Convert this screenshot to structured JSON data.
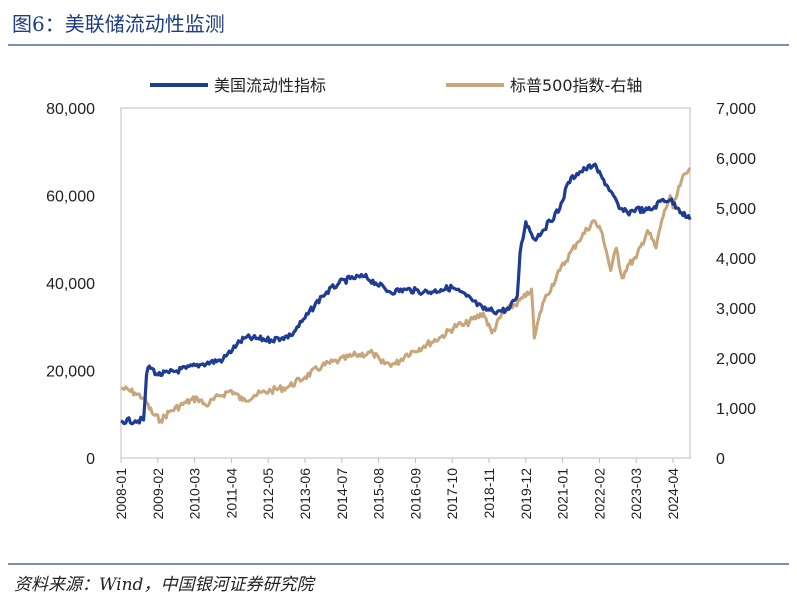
{
  "title": "图6：美联储流动性监测",
  "source": "资料来源：Wind，中国银河证券研究院",
  "colors": {
    "liquidity": "#1f3c94",
    "sp500": "#c8a57a",
    "rule": "#7f8fb4"
  },
  "chart_data": {
    "type": "line",
    "legend": [
      "美国流动性指标",
      "标普500指数-右轴"
    ],
    "legend_position": "top",
    "left_axis": {
      "ticks": [
        "0",
        "20,000",
        "40,000",
        "60,000",
        "80,000"
      ],
      "ylim": [
        0,
        80000
      ]
    },
    "right_axis": {
      "ticks": [
        "0",
        "1,000",
        "2,000",
        "3,000",
        "4,000",
        "5,000",
        "6,000",
        "7,000"
      ],
      "ylim": [
        0,
        7000
      ]
    },
    "x_ticks": [
      "2008-01",
      "2009-02",
      "2010-03",
      "2011-04",
      "2012-05",
      "2013-06",
      "2014-07",
      "2015-08",
      "2016-09",
      "2017-10",
      "2018-11",
      "2019-12",
      "2021-01",
      "2022-02",
      "2023-03",
      "2024-04"
    ],
    "x_range": [
      "2008-01",
      "2024-10"
    ],
    "series": [
      {
        "name": "美国流动性指标",
        "axis": "left",
        "points": [
          [
            "2008-01",
            8500
          ],
          [
            "2008-06",
            8500
          ],
          [
            "2008-09",
            8700
          ],
          [
            "2008-10",
            19000
          ],
          [
            "2008-11",
            21000
          ],
          [
            "2009-02",
            19000
          ],
          [
            "2009-06",
            19500
          ],
          [
            "2009-12",
            20500
          ],
          [
            "2010-06",
            21500
          ],
          [
            "2011-01",
            22500
          ],
          [
            "2011-06",
            26000
          ],
          [
            "2011-09",
            27500
          ],
          [
            "2012-06",
            27000
          ],
          [
            "2012-10",
            27500
          ],
          [
            "2013-01",
            28000
          ],
          [
            "2013-06",
            32000
          ],
          [
            "2013-12",
            37000
          ],
          [
            "2014-06",
            40000
          ],
          [
            "2014-10",
            41000
          ],
          [
            "2015-03",
            41500
          ],
          [
            "2015-07",
            40000
          ],
          [
            "2015-12",
            38000
          ],
          [
            "2016-06",
            38500
          ],
          [
            "2016-12",
            38000
          ],
          [
            "2017-03",
            38000
          ],
          [
            "2017-06",
            38500
          ],
          [
            "2017-10",
            39000
          ],
          [
            "2018-03",
            37000
          ],
          [
            "2018-09",
            34000
          ],
          [
            "2019-02",
            33500
          ],
          [
            "2019-06",
            34000
          ],
          [
            "2019-08",
            36000
          ],
          [
            "2019-09",
            37000
          ],
          [
            "2019-10",
            47000
          ],
          [
            "2019-12",
            54000
          ],
          [
            "2020-03",
            50000
          ],
          [
            "2020-06",
            52000
          ],
          [
            "2020-12",
            57000
          ],
          [
            "2021-03",
            63000
          ],
          [
            "2021-06",
            65000
          ],
          [
            "2021-09",
            66000
          ],
          [
            "2021-12",
            67000
          ],
          [
            "2022-03",
            64000
          ],
          [
            "2022-06",
            61000
          ],
          [
            "2022-09",
            57000
          ],
          [
            "2022-12",
            56000
          ],
          [
            "2023-03",
            57000
          ],
          [
            "2023-06",
            56500
          ],
          [
            "2023-09",
            57000
          ],
          [
            "2023-12",
            59000
          ],
          [
            "2024-03",
            59000
          ],
          [
            "2024-06",
            57000
          ],
          [
            "2024-09",
            55000
          ],
          [
            "2024-10",
            54500
          ]
        ]
      },
      {
        "name": "标普500指数-右轴",
        "axis": "right",
        "points": [
          [
            "2008-01",
            1400
          ],
          [
            "2008-06",
            1300
          ],
          [
            "2008-09",
            1200
          ],
          [
            "2008-12",
            900
          ],
          [
            "2009-03",
            750
          ],
          [
            "2009-06",
            920
          ],
          [
            "2009-12",
            1110
          ],
          [
            "2010-04",
            1200
          ],
          [
            "2010-07",
            1050
          ],
          [
            "2010-12",
            1250
          ],
          [
            "2011-04",
            1350
          ],
          [
            "2011-08",
            1150
          ],
          [
            "2011-12",
            1250
          ],
          [
            "2012-06",
            1350
          ],
          [
            "2012-12",
            1420
          ],
          [
            "2013-06",
            1620
          ],
          [
            "2013-12",
            1840
          ],
          [
            "2014-06",
            1950
          ],
          [
            "2014-12",
            2060
          ],
          [
            "2015-06",
            2100
          ],
          [
            "2015-09",
            1900
          ],
          [
            "2016-02",
            1880
          ],
          [
            "2016-06",
            2080
          ],
          [
            "2016-12",
            2240
          ],
          [
            "2017-06",
            2420
          ],
          [
            "2017-12",
            2670
          ],
          [
            "2018-02",
            2650
          ],
          [
            "2018-09",
            2900
          ],
          [
            "2018-12",
            2500
          ],
          [
            "2019-04",
            2900
          ],
          [
            "2019-12",
            3230
          ],
          [
            "2020-02",
            3380
          ],
          [
            "2020-03",
            2400
          ],
          [
            "2020-06",
            3100
          ],
          [
            "2020-12",
            3750
          ],
          [
            "2021-06",
            4300
          ],
          [
            "2021-12",
            4750
          ],
          [
            "2022-03",
            4500
          ],
          [
            "2022-06",
            3750
          ],
          [
            "2022-08",
            4200
          ],
          [
            "2022-10",
            3600
          ],
          [
            "2022-12",
            3850
          ],
          [
            "2023-03",
            4000
          ],
          [
            "2023-07",
            4550
          ],
          [
            "2023-10",
            4200
          ],
          [
            "2023-12",
            4750
          ],
          [
            "2024-03",
            5250
          ],
          [
            "2024-04",
            5000
          ],
          [
            "2024-07",
            5550
          ],
          [
            "2024-09",
            5700
          ],
          [
            "2024-10",
            5800
          ]
        ]
      }
    ]
  }
}
